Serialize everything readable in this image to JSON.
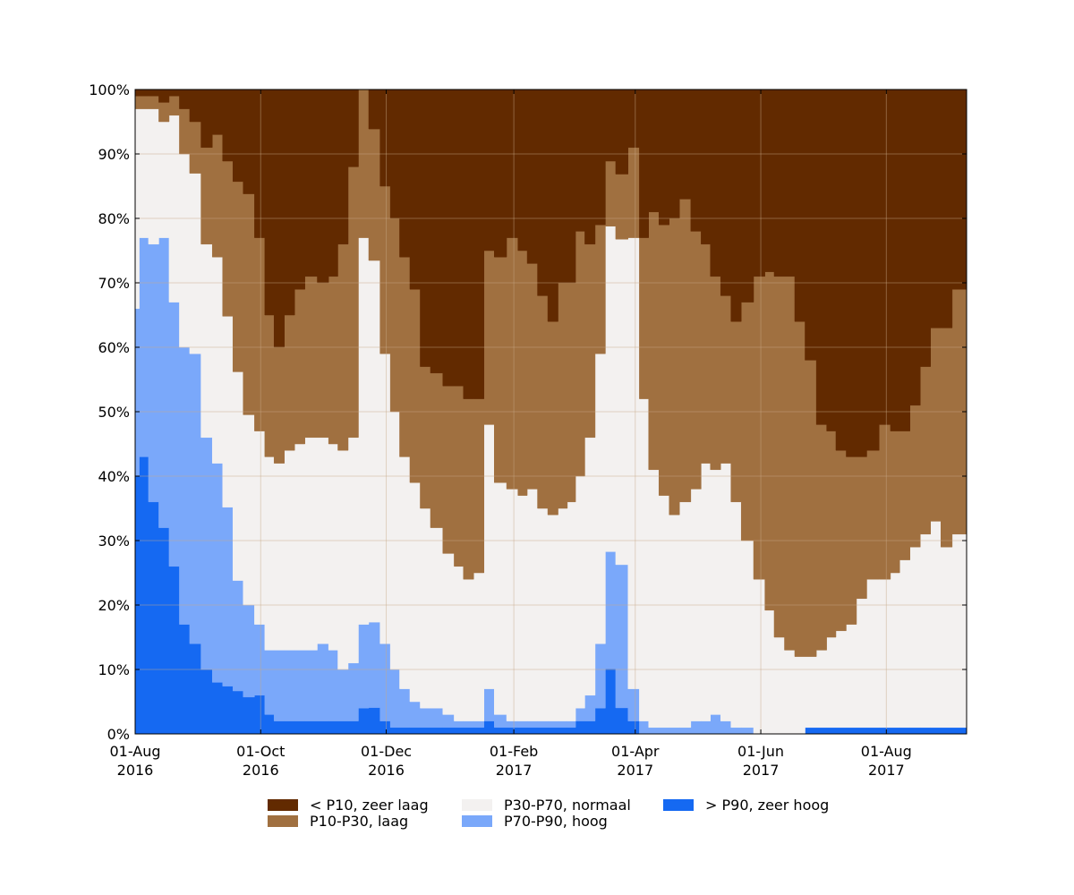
{
  "chart_data": {
    "type": "area",
    "title": "",
    "xlabel": "",
    "ylabel": "",
    "stacking": "percent",
    "x_start": "2016-08-01",
    "x_end": "2017-09-09",
    "x_ticks": [
      {
        "date": "2016-08-01",
        "line1": "01-Aug",
        "line2": "2016"
      },
      {
        "date": "2016-10-01",
        "line1": "01-Oct",
        "line2": "2016"
      },
      {
        "date": "2016-12-01",
        "line1": "01-Dec",
        "line2": "2016"
      },
      {
        "date": "2017-02-01",
        "line1": "01-Feb",
        "line2": "2017"
      },
      {
        "date": "2017-04-01",
        "line1": "01-Apr",
        "line2": "2017"
      },
      {
        "date": "2017-06-01",
        "line1": "01-Jun",
        "line2": "2017"
      },
      {
        "date": "2017-08-01",
        "line1": "01-Aug",
        "line2": "2017"
      }
    ],
    "y_ticks": [
      "0%",
      "10%",
      "20%",
      "30%",
      "40%",
      "50%",
      "60%",
      "70%",
      "80%",
      "90%",
      "100%"
    ],
    "ylim": [
      0,
      100
    ],
    "grid": true,
    "legend_position": "bottom",
    "x": [
      "2016-08-01",
      "2016-08-05",
      "2016-08-10",
      "2016-08-15",
      "2016-08-20",
      "2016-08-25",
      "2016-08-30",
      "2016-09-05",
      "2016-09-10",
      "2016-09-15",
      "2016-09-20",
      "2016-09-25",
      "2016-10-01",
      "2016-10-05",
      "2016-10-10",
      "2016-10-15",
      "2016-10-20",
      "2016-10-25",
      "2016-11-01",
      "2016-11-05",
      "2016-11-10",
      "2016-11-15",
      "2016-11-20",
      "2016-11-25",
      "2016-12-01",
      "2016-12-05",
      "2016-12-10",
      "2016-12-15",
      "2016-12-20",
      "2016-12-25",
      "2017-01-01",
      "2017-01-05",
      "2017-01-10",
      "2017-01-15",
      "2017-01-20",
      "2017-01-25",
      "2017-02-01",
      "2017-02-05",
      "2017-02-10",
      "2017-02-15",
      "2017-02-20",
      "2017-02-25",
      "2017-03-01",
      "2017-03-05",
      "2017-03-10",
      "2017-03-15",
      "2017-03-20",
      "2017-03-25",
      "2017-04-01",
      "2017-04-05",
      "2017-04-10",
      "2017-04-15",
      "2017-04-20",
      "2017-04-25",
      "2017-05-01",
      "2017-05-05",
      "2017-05-10",
      "2017-05-15",
      "2017-05-20",
      "2017-05-25",
      "2017-06-01",
      "2017-06-05",
      "2017-06-10",
      "2017-06-15",
      "2017-06-20",
      "2017-06-25",
      "2017-07-01",
      "2017-07-05",
      "2017-07-10",
      "2017-07-15",
      "2017-07-20",
      "2017-07-25",
      "2017-08-01",
      "2017-08-05",
      "2017-08-10",
      "2017-08-15",
      "2017-08-20",
      "2017-08-25",
      "2017-08-30",
      "2017-09-05"
    ],
    "series": [
      {
        "name": "> P90, zeer hoog",
        "color": "#1569f2",
        "values": [
          40,
          43,
          36,
          32,
          26,
          17,
          14,
          10,
          8,
          8,
          7,
          6,
          6,
          3,
          2,
          2,
          2,
          2,
          2,
          2,
          2,
          2,
          4,
          4,
          2,
          1,
          1,
          1,
          1,
          1,
          1,
          1,
          1,
          1,
          2,
          1,
          1,
          1,
          1,
          1,
          1,
          1,
          1,
          2,
          2,
          4,
          10,
          4,
          2,
          0,
          0,
          0,
          0,
          0,
          0,
          0,
          0,
          0,
          0,
          0,
          0,
          0,
          0,
          0,
          0,
          1,
          1,
          1,
          1,
          1,
          1,
          1,
          1,
          1,
          1,
          1,
          1,
          1,
          1,
          1
        ]
      },
      {
        "name": "P70-P90, hoog",
        "color": "#7aa8fa",
        "values": [
          26,
          34,
          40,
          45,
          41,
          43,
          45,
          36,
          34,
          30,
          18,
          15,
          11,
          10,
          11,
          11,
          11,
          11,
          12,
          11,
          8,
          9,
          13,
          13,
          12,
          9,
          6,
          4,
          3,
          3,
          2,
          1,
          1,
          1,
          5,
          2,
          1,
          1,
          1,
          1,
          1,
          1,
          1,
          2,
          4,
          10,
          18,
          22,
          5,
          2,
          1,
          1,
          1,
          1,
          2,
          2,
          3,
          2,
          1,
          1,
          0,
          0,
          0,
          0,
          0,
          0,
          0,
          0,
          0,
          0,
          0,
          0,
          0,
          0,
          0,
          0,
          0,
          0,
          0,
          0
        ]
      },
      {
        "name": "P30-P70, normaal",
        "color": "#f3f1f0",
        "values": [
          31,
          20,
          21,
          18,
          29,
          30,
          28,
          30,
          32,
          32,
          34,
          31,
          30,
          30,
          29,
          31,
          32,
          33,
          32,
          32,
          34,
          35,
          60,
          55,
          45,
          40,
          36,
          34,
          31,
          28,
          25,
          24,
          22,
          23,
          41,
          36,
          36,
          35,
          36,
          33,
          32,
          33,
          34,
          36,
          40,
          45,
          50,
          50,
          70,
          50,
          40,
          36,
          33,
          35,
          36,
          40,
          38,
          40,
          35,
          29,
          24,
          19,
          15,
          13,
          12,
          11,
          12,
          14,
          15,
          16,
          20,
          23,
          23,
          24,
          26,
          28,
          30,
          32,
          28,
          30
        ]
      },
      {
        "name": "P10-P30, laag",
        "color": "#a07040",
        "values": [
          2,
          2,
          2,
          3,
          3,
          7,
          8,
          15,
          19,
          26,
          31,
          36,
          30,
          22,
          18,
          21,
          24,
          25,
          24,
          26,
          32,
          42,
          23,
          20,
          26,
          30,
          31,
          30,
          22,
          24,
          26,
          28,
          28,
          27,
          27,
          35,
          39,
          38,
          35,
          33,
          30,
          35,
          34,
          38,
          30,
          20,
          10,
          10,
          14,
          25,
          40,
          42,
          46,
          47,
          40,
          34,
          30,
          26,
          28,
          37,
          47,
          52,
          56,
          58,
          52,
          46,
          35,
          32,
          28,
          26,
          22,
          20,
          24,
          22,
          20,
          22,
          26,
          30,
          34,
          38
        ]
      },
      {
        "name": "< P10, zeer laag",
        "color": "#622a00",
        "values": [
          1,
          1,
          1,
          2,
          1,
          3,
          5,
          9,
          7,
          12,
          15,
          17,
          23,
          35,
          40,
          35,
          31,
          29,
          30,
          29,
          24,
          12,
          0,
          6,
          15,
          20,
          26,
          31,
          43,
          44,
          46,
          46,
          48,
          48,
          25,
          26,
          23,
          25,
          27,
          32,
          36,
          30,
          30,
          22,
          24,
          21,
          11,
          13,
          9,
          23,
          19,
          21,
          20,
          17,
          22,
          24,
          29,
          32,
          36,
          33,
          29,
          28,
          29,
          29,
          36,
          42,
          52,
          53,
          56,
          57,
          57,
          56,
          52,
          53,
          53,
          49,
          43,
          37,
          37,
          31
        ]
      }
    ]
  }
}
